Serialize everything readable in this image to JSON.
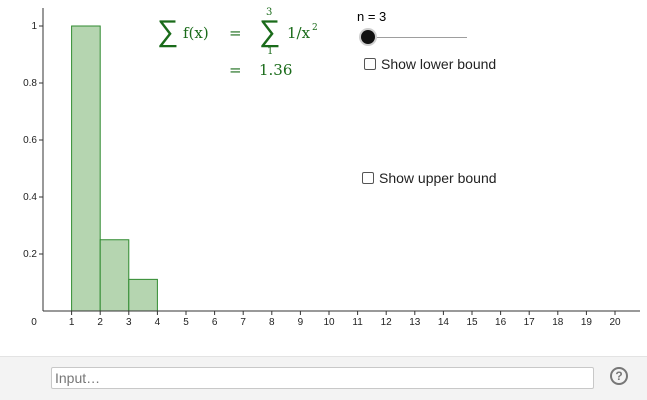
{
  "toolbar_colors": {
    "accent": "#1a6b1a",
    "bar_fill": "#b5d5b0",
    "bar_stroke": "#2f8a2f"
  },
  "slider": {
    "label": "n = 3",
    "value": 3
  },
  "checkboxes": [
    {
      "label": "Show lower bound",
      "checked": false
    },
    {
      "label": "Show upper bound",
      "checked": false
    }
  ],
  "formula": {
    "lhs": "f(x)",
    "eq1": "=",
    "upper_limit": "3",
    "lower_limit": "1",
    "term": "1/x",
    "exponent": "2",
    "eq2": "=",
    "result": "1.36"
  },
  "input_bar": {
    "placeholder": "Input…"
  },
  "help": {
    "icon": "help-circle-icon",
    "glyph": "?"
  },
  "chart_data": {
    "type": "bar",
    "x_intervals": [
      [
        1,
        2
      ],
      [
        2,
        3
      ],
      [
        3,
        4
      ]
    ],
    "values": [
      1,
      0.25,
      0.111
    ],
    "xlim": [
      0,
      20
    ],
    "ylim": [
      0,
      1
    ],
    "xticks": [
      "0",
      "1",
      "2",
      "3",
      "4",
      "5",
      "6",
      "7",
      "8",
      "9",
      "10",
      "11",
      "12",
      "13",
      "14",
      "15",
      "16",
      "17",
      "18",
      "19",
      "20"
    ],
    "yticks": [
      "0.2",
      "0.4",
      "0.6",
      "0.8",
      "1"
    ],
    "ytick_values": [
      0.2,
      0.4,
      0.6,
      0.8,
      1
    ],
    "grid": false
  }
}
